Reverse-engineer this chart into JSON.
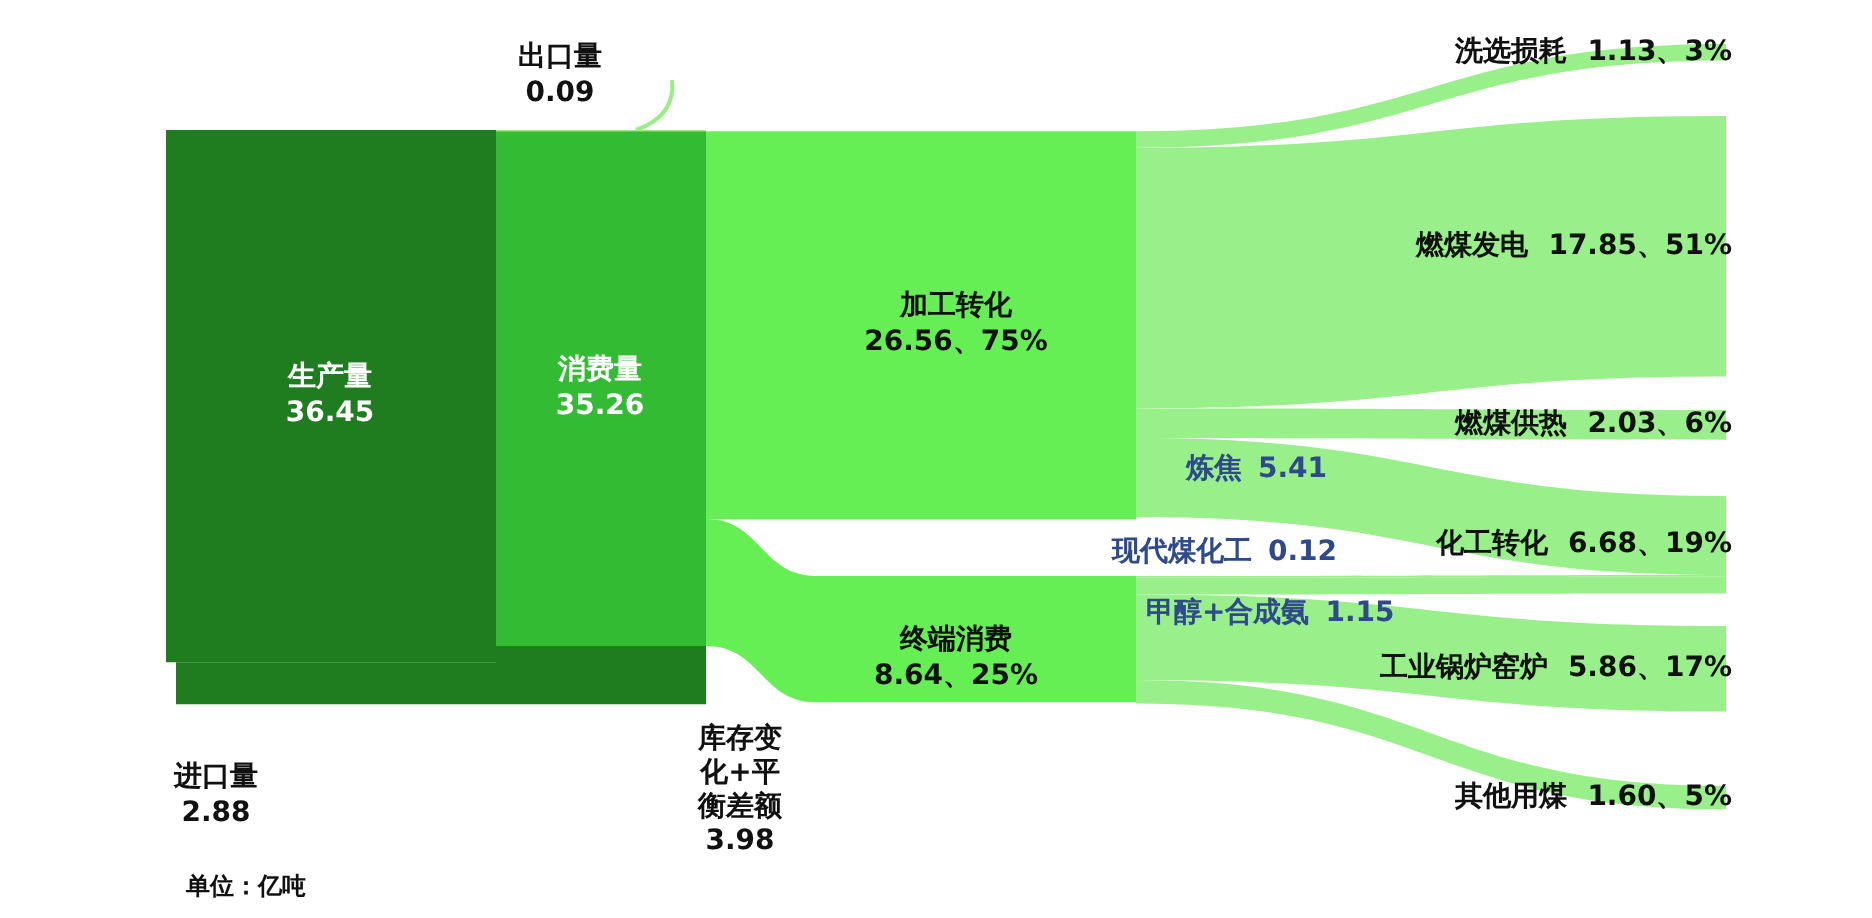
{
  "chart_data": {
    "type": "other",
    "categories": [
      "生产量",
      "进口量",
      "出口量",
      "消费量",
      "库存变化+平衡差额",
      "加工转化",
      "终端消费",
      "洗选损耗",
      "燃煤发电",
      "燃煤供热",
      "化工转化",
      "工业锅炉窑炉",
      "其他用煤",
      "炼焦",
      "现代煤化工",
      "甲醇+合成氨"
    ],
    "values": [
      36.45,
      2.88,
      0.09,
      35.26,
      3.98,
      26.56,
      8.64,
      1.13,
      17.85,
      2.03,
      6.68,
      5.86,
      1.6,
      5.41,
      0.12,
      1.15
    ],
    "value_labels": [
      "36.45",
      "2.88",
      "0.09",
      "35.26",
      "3.98",
      "26.56、75%",
      "8.64、25%",
      "1.13、3%",
      "17.85、51%",
      "2.03、6%",
      "6.68、19%",
      "5.86、17%",
      "1.60、5%",
      "5.41",
      "0.12",
      "1.15"
    ],
    "colors": [
      "#1f7d1f",
      "#1f7d1f",
      "#99ee88",
      "#33bb33",
      "#1f7d1f",
      "#66ee55",
      "#66ee55",
      "#99f08a",
      "#99f08a",
      "#99f08a",
      "#99f08a",
      "#99f08a",
      "#99f08a",
      "#2e4a8c",
      "#2e4a8c",
      "#2e4a8c"
    ],
    "annotations": [
      "单位：亿吨"
    ]
  }
}
